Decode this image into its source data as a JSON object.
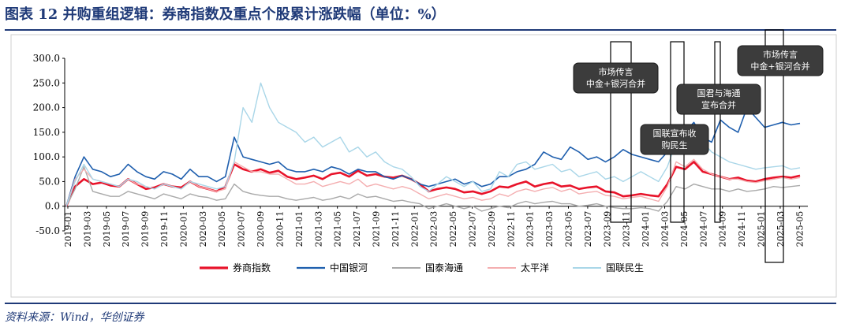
{
  "title": "图表 12   并购重组逻辑：券商指数及重点个股累计涨跌幅（单位：%）",
  "source": "资料来源：Wind，华创证券",
  "chart_data": {
    "type": "line",
    "title": "图表 12   并购重组逻辑：券商指数及重点个股累计涨跌幅（单位：%）",
    "ylim": [
      -50,
      300
    ],
    "yticks": [
      "300.0",
      "250.0",
      "200.0",
      "150.0",
      "100.0",
      "50.0",
      "0.0",
      "-50.0"
    ],
    "xticks": [
      "2019-01",
      "2019-03",
      "2019-05",
      "2019-07",
      "2019-09",
      "2019-11",
      "2020-01",
      "2020-03",
      "2020-05",
      "2020-07",
      "2020-09",
      "2020-11",
      "2021-01",
      "2021-03",
      "2021-05",
      "2021-07",
      "2021-09",
      "2021-11",
      "2022-01",
      "2022-03",
      "2022-05",
      "2022-07",
      "2022-09",
      "2022-11",
      "2023-01",
      "2023-03",
      "2023-05",
      "2023-07",
      "2023-09",
      "2023-11",
      "2024-01",
      "2024-03",
      "2024-05",
      "2024-07",
      "2024-09",
      "2024-11",
      "2025-01",
      "2025-03",
      "2025-05"
    ],
    "series": [
      {
        "name": "券商指数",
        "color": "#e8132a",
        "width": 2.6,
        "values": [
          0,
          40,
          55,
          45,
          48,
          42,
          40,
          55,
          45,
          35,
          38,
          45,
          40,
          38,
          50,
          40,
          35,
          30,
          40,
          85,
          75,
          70,
          75,
          68,
          72,
          60,
          55,
          58,
          62,
          55,
          65,
          68,
          60,
          72,
          62,
          65,
          60,
          58,
          62,
          55,
          45,
          30,
          35,
          38,
          35,
          28,
          30,
          25,
          30,
          40,
          38,
          45,
          50,
          40,
          45,
          48,
          40,
          42,
          35,
          38,
          40,
          30,
          28,
          20,
          22,
          25,
          22,
          20,
          45,
          80,
          75,
          90,
          70,
          65,
          60,
          55,
          58,
          52,
          50,
          55,
          58,
          60,
          58,
          62
        ]
      },
      {
        "name": "中国银河",
        "color": "#1f5fae",
        "width": 1.6,
        "values": [
          0,
          60,
          100,
          75,
          70,
          60,
          65,
          85,
          70,
          60,
          55,
          70,
          65,
          55,
          75,
          60,
          60,
          50,
          60,
          140,
          100,
          95,
          90,
          85,
          90,
          75,
          70,
          70,
          75,
          70,
          80,
          75,
          65,
          75,
          70,
          70,
          60,
          55,
          62,
          55,
          45,
          40,
          45,
          50,
          55,
          45,
          50,
          40,
          45,
          60,
          60,
          70,
          75,
          85,
          110,
          100,
          95,
          120,
          110,
          95,
          100,
          90,
          100,
          115,
          105,
          100,
          95,
          90,
          110,
          160,
          150,
          170,
          140,
          130,
          175,
          160,
          150,
          200,
          180,
          160,
          165,
          170,
          165,
          168
        ]
      },
      {
        "name": "国泰海通",
        "color": "#a9a9a9",
        "width": 1.4,
        "values": [
          0,
          35,
          80,
          30,
          25,
          20,
          20,
          30,
          25,
          20,
          15,
          25,
          20,
          15,
          25,
          20,
          18,
          12,
          15,
          45,
          30,
          25,
          22,
          20,
          20,
          15,
          12,
          15,
          18,
          12,
          15,
          20,
          15,
          25,
          18,
          20,
          15,
          10,
          12,
          8,
          5,
          -5,
          0,
          5,
          0,
          -5,
          0,
          -10,
          -5,
          0,
          -3,
          5,
          10,
          5,
          8,
          10,
          5,
          5,
          0,
          2,
          5,
          0,
          -3,
          -5,
          -5,
          -3,
          -5,
          -10,
          10,
          40,
          35,
          45,
          40,
          35,
          35,
          30,
          35,
          30,
          32,
          35,
          40,
          38,
          40,
          42
        ]
      },
      {
        "name": "太平洋",
        "color": "#f4aeb0",
        "width": 1.4,
        "values": [
          0,
          55,
          75,
          55,
          50,
          45,
          40,
          55,
          45,
          40,
          35,
          45,
          40,
          35,
          50,
          40,
          35,
          30,
          35,
          90,
          80,
          70,
          70,
          65,
          65,
          55,
          45,
          45,
          50,
          40,
          45,
          50,
          45,
          55,
          40,
          45,
          40,
          35,
          40,
          35,
          25,
          15,
          20,
          25,
          20,
          15,
          18,
          12,
          15,
          25,
          20,
          30,
          35,
          30,
          35,
          38,
          30,
          35,
          25,
          28,
          30,
          22,
          20,
          15,
          18,
          20,
          15,
          10,
          40,
          90,
          80,
          95,
          75,
          65,
          60,
          55,
          55,
          50,
          48,
          52,
          55,
          58,
          55,
          58
        ]
      },
      {
        "name": "国联民生",
        "color": "#a9d6e8",
        "width": 1.4,
        "values": [
          0,
          50,
          85,
          55,
          50,
          45,
          40,
          55,
          50,
          40,
          35,
          45,
          40,
          35,
          50,
          45,
          40,
          35,
          40,
          90,
          200,
          170,
          250,
          200,
          170,
          160,
          150,
          130,
          140,
          120,
          130,
          140,
          110,
          120,
          100,
          110,
          90,
          80,
          75,
          60,
          40,
          30,
          45,
          60,
          50,
          40,
          50,
          30,
          35,
          70,
          60,
          85,
          90,
          75,
          80,
          85,
          70,
          75,
          60,
          65,
          70,
          55,
          60,
          50,
          60,
          70,
          60,
          50,
          80,
          130,
          120,
          150,
          130,
          110,
          100,
          90,
          85,
          80,
          75,
          78,
          80,
          82,
          75,
          78
        ]
      }
    ],
    "annotations": [
      {
        "text": [
          "市场传言",
          "中金+银河合并"
        ]
      },
      {
        "text": [
          "国联宣布收",
          "购民生"
        ]
      },
      {
        "text": [
          "国君与海通",
          "宣布合并"
        ]
      },
      {
        "text": [
          "市场传言",
          "中金+银河合并"
        ]
      }
    ],
    "legend_position": "bottom"
  }
}
